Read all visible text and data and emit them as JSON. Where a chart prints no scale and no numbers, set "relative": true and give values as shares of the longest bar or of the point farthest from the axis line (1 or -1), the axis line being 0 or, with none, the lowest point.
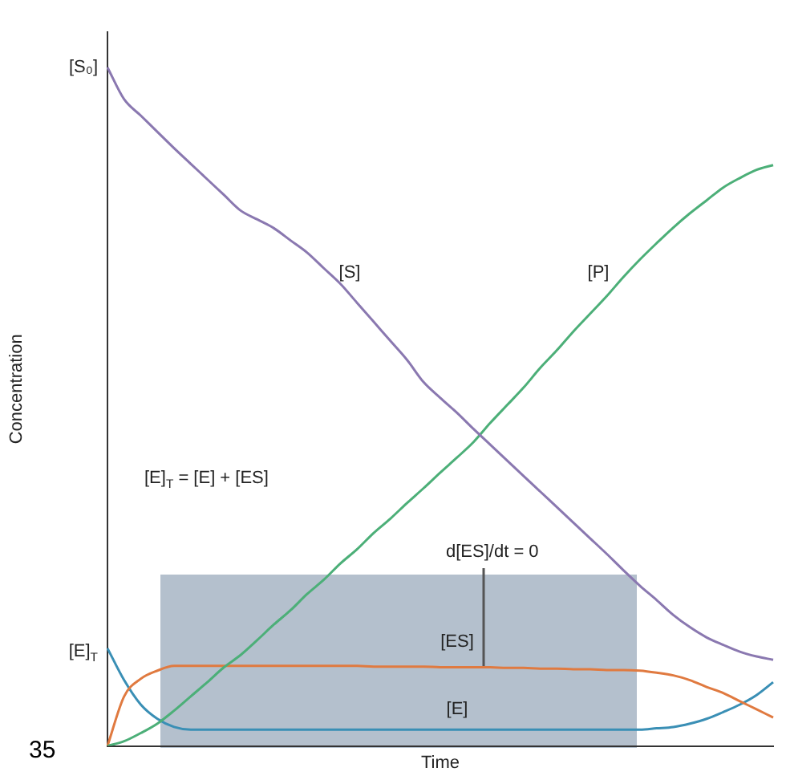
{
  "chart_data": {
    "type": "line",
    "relative": true,
    "xlabel": "Time",
    "ylabel": "Concentration",
    "grid": false,
    "legend": false,
    "marker": "none",
    "line_style": "solid",
    "categories": [
      null,
      null,
      null,
      null,
      null,
      null,
      null,
      null,
      null,
      null,
      null,
      null,
      null,
      null,
      null,
      null,
      null,
      null,
      null,
      null,
      null,
      null,
      null,
      null,
      null,
      null,
      null,
      null,
      null,
      null,
      null,
      null,
      null,
      null,
      null,
      null,
      null,
      null,
      null,
      null,
      null
    ],
    "series": [
      {
        "name": "[S]",
        "color": "#8a78b0",
        "values": [
          1.0,
          0.953,
          0.929,
          0.905,
          0.881,
          0.858,
          0.835,
          0.812,
          0.789,
          0.776,
          0.763,
          0.745,
          0.727,
          0.704,
          0.681,
          0.653,
          0.625,
          0.597,
          0.569,
          0.536,
          0.513,
          0.491,
          0.467,
          0.444,
          0.421,
          0.398,
          0.375,
          0.352,
          0.329,
          0.306,
          0.283,
          0.259,
          0.236,
          0.215,
          0.193,
          0.175,
          0.16,
          0.149,
          0.139,
          0.132,
          0.127
        ]
      },
      {
        "name": "[P]",
        "color": "#4caf78",
        "values": [
          0,
          0.007,
          0.019,
          0.033,
          0.052,
          0.073,
          0.094,
          0.116,
          0.134,
          0.156,
          0.179,
          0.2,
          0.224,
          0.245,
          0.269,
          0.29,
          0.314,
          0.335,
          0.358,
          0.38,
          0.403,
          0.425,
          0.448,
          0.476,
          0.502,
          0.528,
          0.557,
          0.583,
          0.611,
          0.637,
          0.663,
          0.691,
          0.717,
          0.741,
          0.764,
          0.785,
          0.804,
          0.823,
          0.837,
          0.849,
          0.856
        ]
      },
      {
        "name": "[ES]",
        "color": "#e07a40",
        "values": [
          0,
          0.073,
          0.099,
          0.111,
          0.118,
          0.118,
          0.118,
          0.118,
          0.118,
          0.118,
          0.118,
          0.118,
          0.118,
          0.118,
          0.118,
          0.118,
          0.117,
          0.117,
          0.117,
          0.117,
          0.116,
          0.116,
          0.116,
          0.116,
          0.115,
          0.115,
          0.114,
          0.114,
          0.113,
          0.113,
          0.112,
          0.112,
          0.111,
          0.108,
          0.104,
          0.097,
          0.087,
          0.078,
          0.066,
          0.054,
          0.042
        ]
      },
      {
        "name": "[E]",
        "color": "#3a8fb5",
        "values": [
          0.144,
          0.097,
          0.061,
          0.04,
          0.028,
          0.024,
          0.024,
          0.024,
          0.024,
          0.024,
          0.024,
          0.024,
          0.024,
          0.024,
          0.024,
          0.024,
          0.024,
          0.024,
          0.024,
          0.024,
          0.024,
          0.024,
          0.024,
          0.024,
          0.024,
          0.024,
          0.024,
          0.024,
          0.024,
          0.024,
          0.024,
          0.024,
          0.024,
          0.026,
          0.028,
          0.033,
          0.04,
          0.05,
          0.061,
          0.075,
          0.094
        ]
      }
    ],
    "annotations": [
      "[S₀]",
      "[E]$_{T}$",
      "[E]$_{T}$ = [E] + [ES]",
      "d[ES]/dt = 0",
      "35"
    ]
  }
}
